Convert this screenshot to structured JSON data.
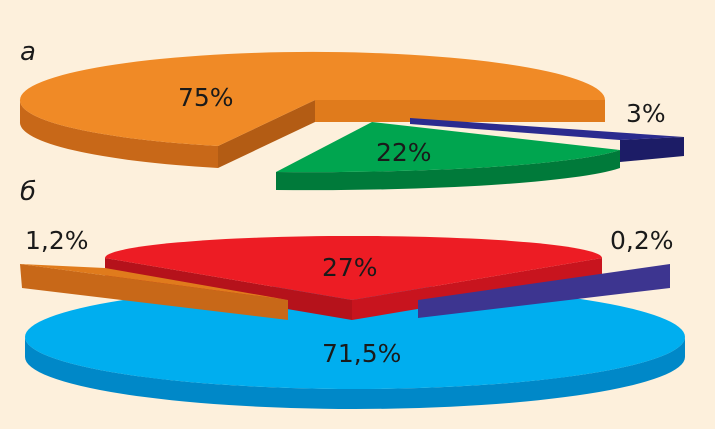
{
  "chart_data": [
    {
      "type": "pie",
      "panel_label": "а",
      "slices": [
        {
          "label": "75%",
          "value": 75,
          "color": "#f08a26"
        },
        {
          "label": "22%",
          "value": 22,
          "color": "#00a54f"
        },
        {
          "label": "3%",
          "value": 3,
          "color": "#2b2b8f"
        }
      ]
    },
    {
      "type": "pie",
      "panel_label": "б",
      "slices": [
        {
          "label": "71,5%",
          "value": 71.5,
          "color": "#00aeef"
        },
        {
          "label": "27%",
          "value": 27,
          "color": "#ed1c24"
        },
        {
          "label": "1,2%",
          "value": 1.2,
          "color": "#f08a26"
        },
        {
          "label": "0,2%",
          "value": 0.2,
          "color": "#5a51a6"
        }
      ]
    }
  ]
}
